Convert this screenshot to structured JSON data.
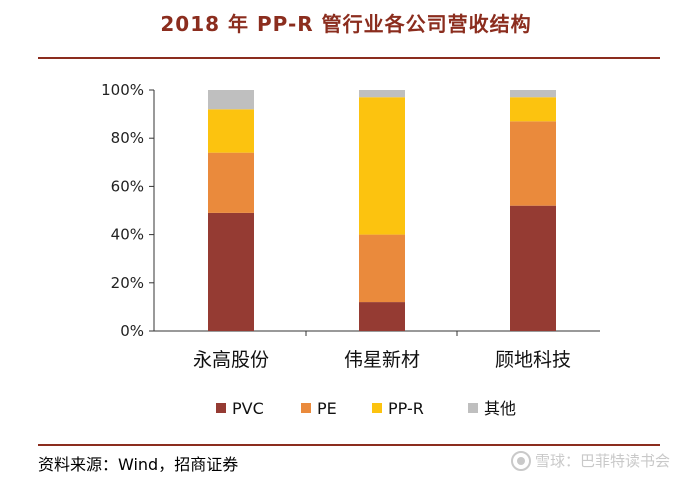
{
  "header": {
    "title": "2018 年 PP-R 管行业各公司营收结构"
  },
  "footer": {
    "source": "资料来源：Wind，招商证券",
    "watermark": "雪球：巴菲特读书会"
  },
  "chart_data": {
    "type": "bar",
    "stacked": true,
    "title": "2018 年 PP-R 管行业各公司营收结构",
    "categories": [
      "永高股份",
      "伟星新材",
      "顾地科技"
    ],
    "series": [
      {
        "name": "PVC",
        "color": "#953b33",
        "values": [
          49,
          12,
          52
        ]
      },
      {
        "name": "PE",
        "color": "#ea8a3c",
        "values": [
          25,
          28,
          35
        ]
      },
      {
        "name": "PP-R",
        "color": "#fcc30f",
        "values": [
          18,
          57,
          10
        ]
      },
      {
        "name": "其他",
        "color": "#bfbfbf",
        "values": [
          8,
          3,
          3
        ]
      }
    ],
    "ylim": [
      0,
      100
    ],
    "yticks": [
      "0%",
      "20%",
      "40%",
      "60%",
      "80%",
      "100%"
    ],
    "grid": false,
    "legend": "bottom"
  }
}
